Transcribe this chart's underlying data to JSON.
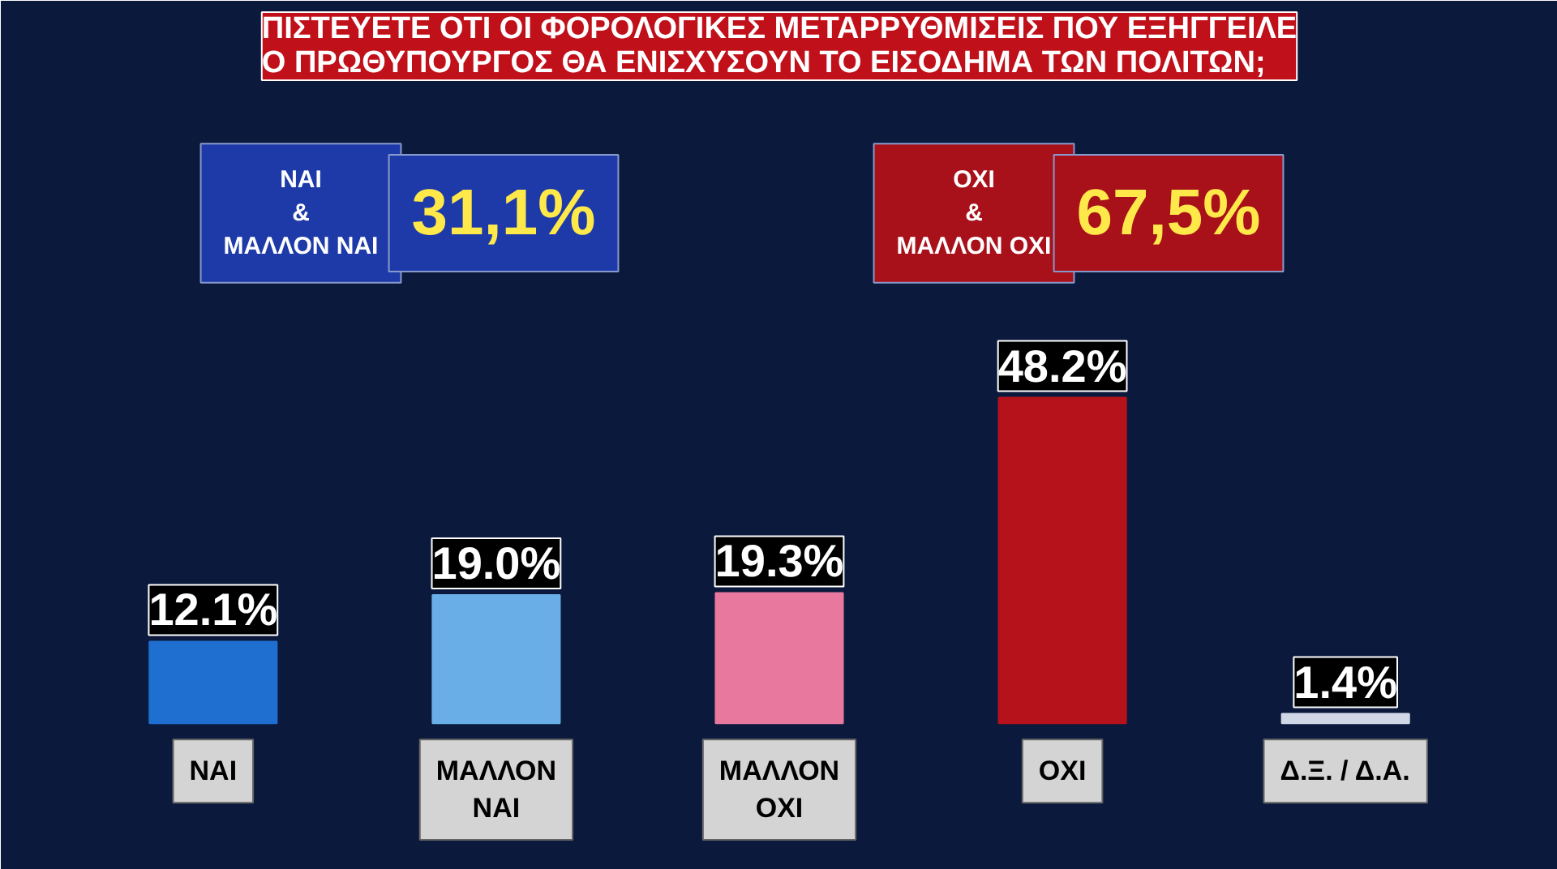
{
  "chart_data": {
    "type": "bar",
    "title": "ΠΙΣΤΕΥΕΤΕ ΟΤΙ ΟΙ ΦΟΡΟΛΟΓΙΚΕΣ ΜΕΤΑΡΡΥΘΜΙΣΕΙΣ ΠΟΥ ΕΞΗΓΓΕΙΛΕ\nΟ ΠΡΩΘΥΠΟΥΡΓΟΣ ΘΑ ΕΝΙΣΧΥΣΟΥΝ ΤΟ ΕΙΣΟΔΗΜΑ ΤΩΝ ΠΟΛΙΤΩΝ;",
    "categories": [
      "ΝΑΙ",
      "ΜΑΛΛΟΝ\nΝΑΙ",
      "ΜΑΛΛΟΝ\nΟΧΙ",
      "ΟΧΙ",
      "Δ.Ξ. / Δ.Α."
    ],
    "values": [
      12.1,
      19.0,
      19.3,
      48.2,
      1.4
    ],
    "value_labels": [
      "12.1%",
      "19.0%",
      "19.3%",
      "48.2%",
      "1.4%"
    ],
    "colors": [
      "#1f6fd0",
      "#6aaee8",
      "#e8789e",
      "#b5121b",
      "#d0d8e8"
    ],
    "annotations": [
      "ΝΑΙ\n&\nΜΑΛΛΟΝ ΝΑΙ",
      "31,1%",
      "ΟΧΙ\n&\nΜΑΛΛΟΝ ΟΧΙ",
      "67,5%"
    ]
  }
}
